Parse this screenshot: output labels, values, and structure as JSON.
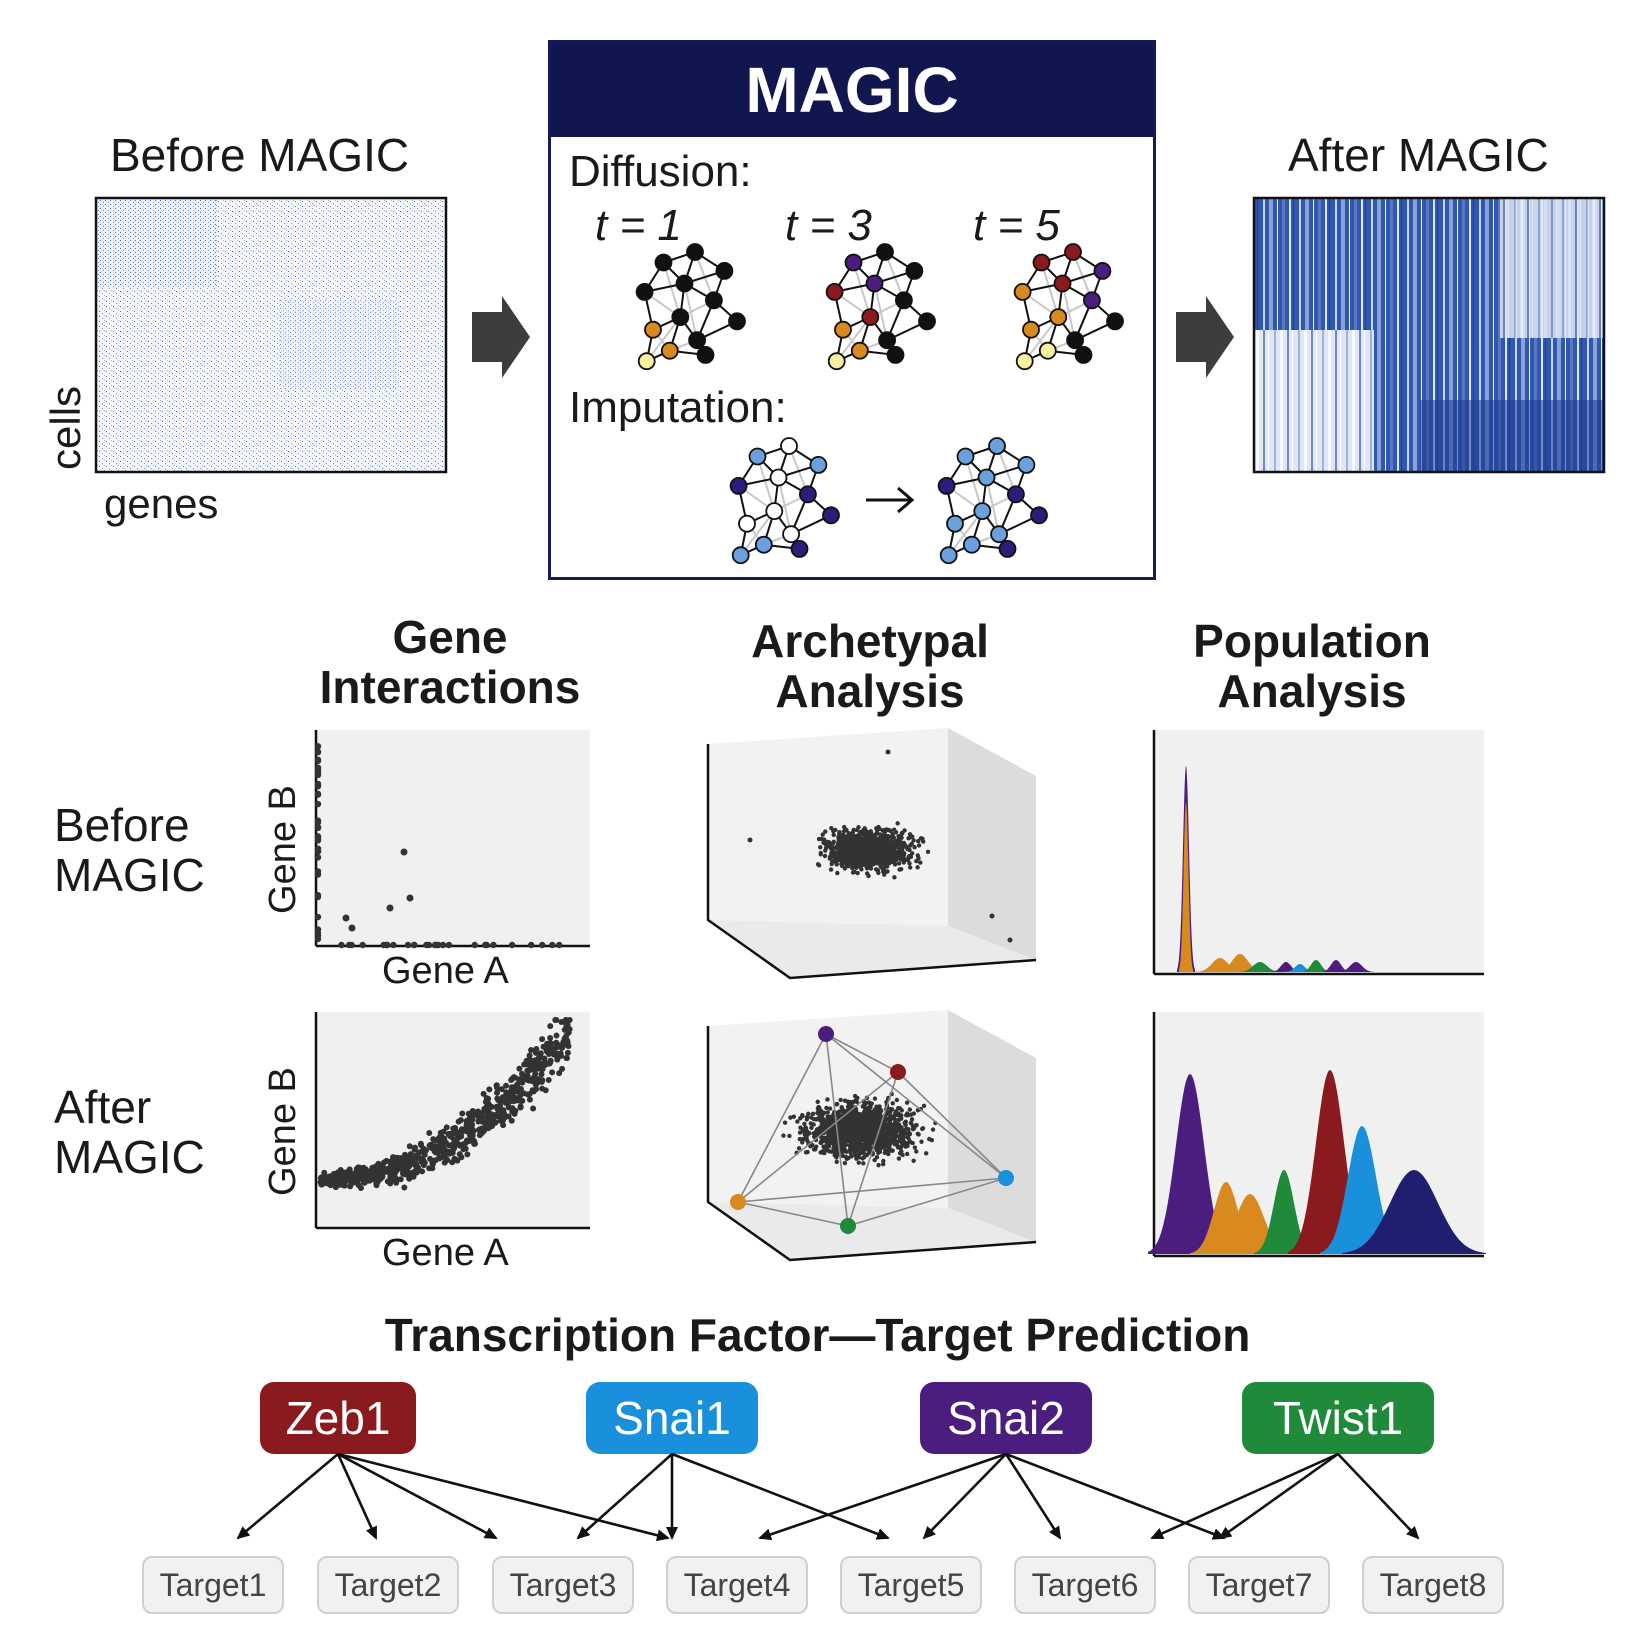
{
  "top": {
    "before_title": "Before MAGIC",
    "after_title": "After MAGIC",
    "cells_label": "cells",
    "genes_label": "genes"
  },
  "magic": {
    "title": "MAGIC",
    "diffusion_label": "Diffusion:",
    "t_labels": [
      "t = 1",
      "t = 3",
      "t = 5"
    ],
    "imputation_label": "Imputation:"
  },
  "analysis": {
    "columns": [
      {
        "title_line1": "Gene",
        "title_line2": "Interactions"
      },
      {
        "title_line1": "Archetypal",
        "title_line2": "Analysis"
      },
      {
        "title_line1": "Population",
        "title_line2": "Analysis"
      }
    ],
    "rows": [
      {
        "line1": "Before",
        "line2": "MAGIC"
      },
      {
        "line1": "After",
        "line2": "MAGIC"
      }
    ],
    "x_axis": "Gene A",
    "y_axis": "Gene B"
  },
  "tf_section": {
    "title": "Transcription Factor—Target Prediction",
    "factors": [
      {
        "name": "Zeb1",
        "color": "#8b1a1e"
      },
      {
        "name": "Snai1",
        "color": "#1a8fdc"
      },
      {
        "name": "Snai2",
        "color": "#4b1d7e"
      },
      {
        "name": "Twist1",
        "color": "#1f8a3a"
      }
    ],
    "targets": [
      "Target1",
      "Target2",
      "Target3",
      "Target4",
      "Target5",
      "Target6",
      "Target7",
      "Target8"
    ]
  },
  "colors": {
    "heatmap_blue": "#2a4fa6",
    "dark": "#333333",
    "panel_bg": "#f0f0f0",
    "purple": "#4b1d7e",
    "orange": "#d98a1e",
    "green": "#1f8a3a",
    "red": "#8b1a1e",
    "blue": "#1a8fdc",
    "navy": "#1e1f6e"
  }
}
